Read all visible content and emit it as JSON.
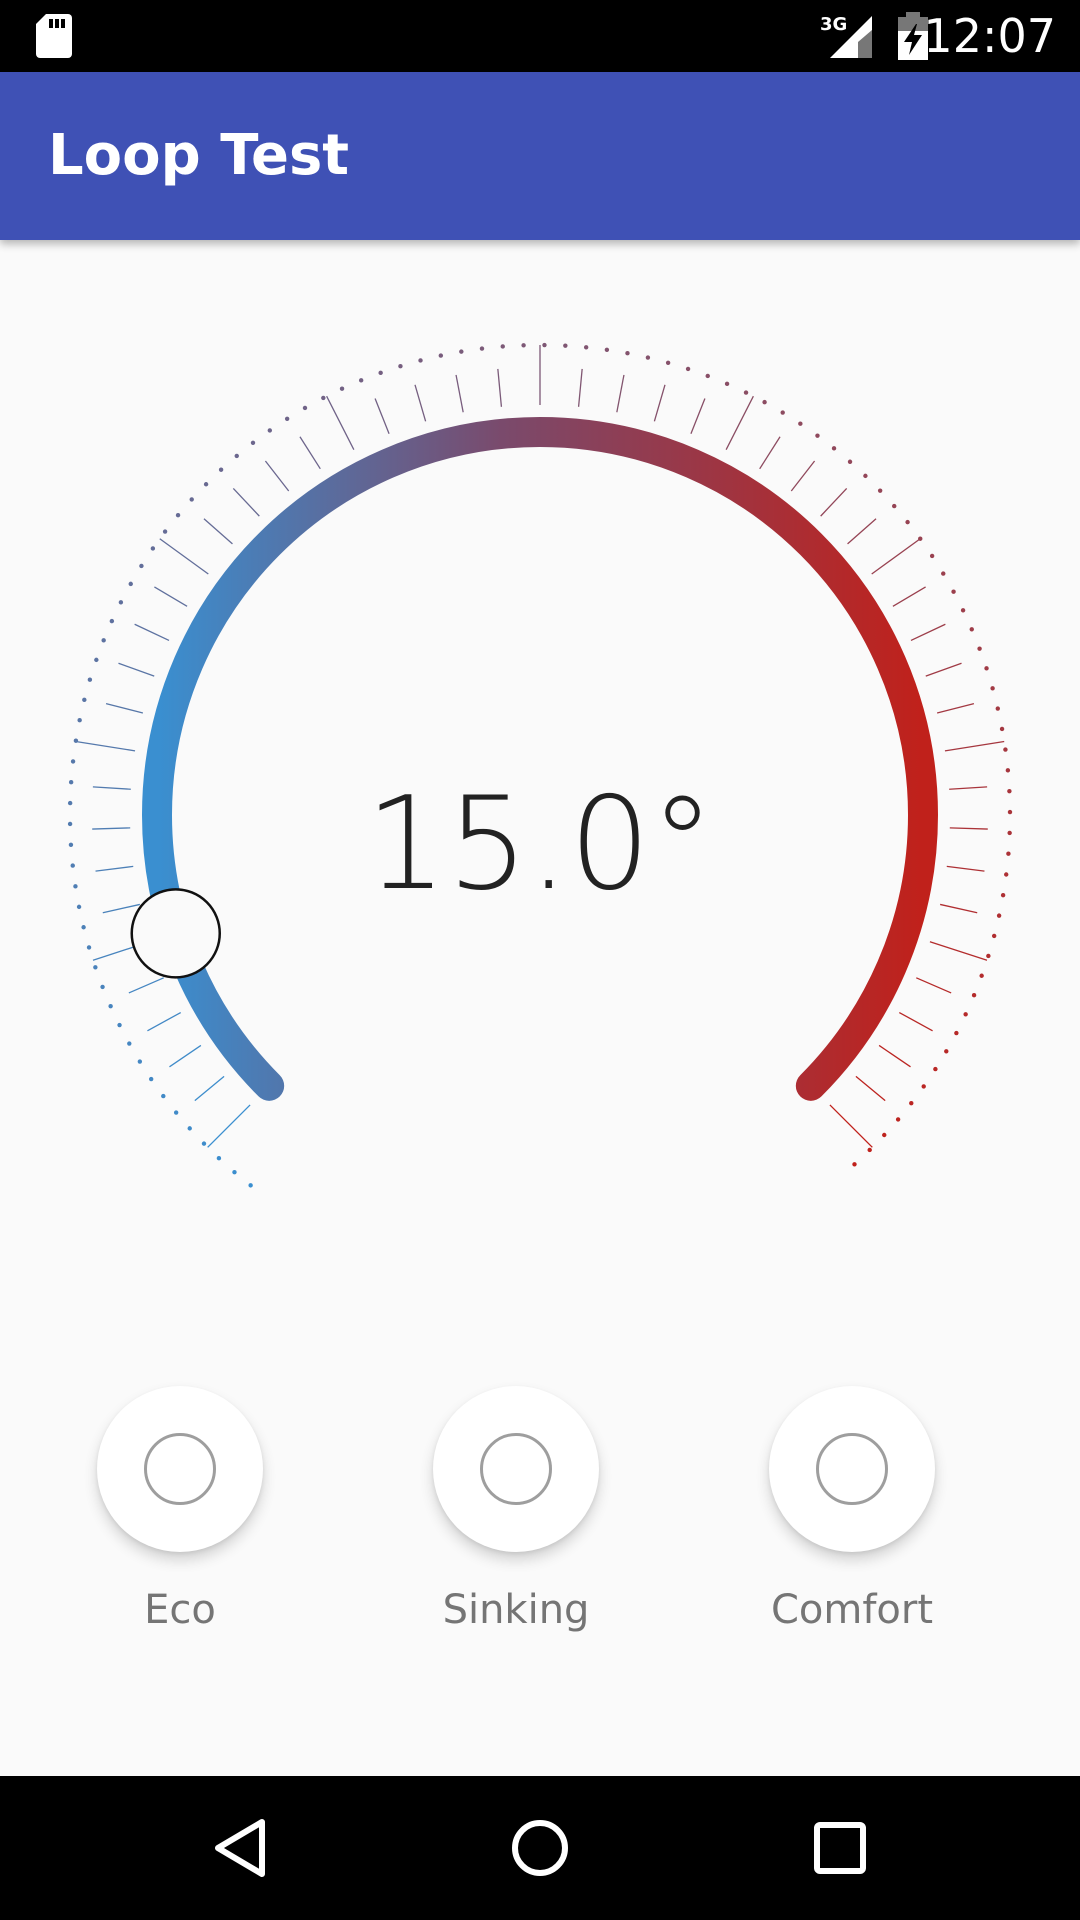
{
  "status_bar": {
    "time": "12:07",
    "network_label": "3G",
    "icons": [
      "sd-card-icon",
      "cell-signal-icon",
      "battery-charging-icon"
    ]
  },
  "app_bar": {
    "title": "Loop Test",
    "color": "#3f51b5"
  },
  "thermostat": {
    "temperature_display": "15.0°",
    "level_fraction": 0.1,
    "gradient_start_color": "#3a8fd0",
    "gradient_end_color": "#c0211b",
    "knob_icon": "circle-handle"
  },
  "modes": [
    {
      "label": "Eco",
      "icon": "circle-outline-icon"
    },
    {
      "label": "Sinking",
      "icon": "circle-outline-icon"
    },
    {
      "label": "Comfort",
      "icon": "circle-outline-icon"
    }
  ],
  "nav_bar": {
    "buttons": [
      "back-icon",
      "home-icon",
      "recents-icon"
    ]
  }
}
